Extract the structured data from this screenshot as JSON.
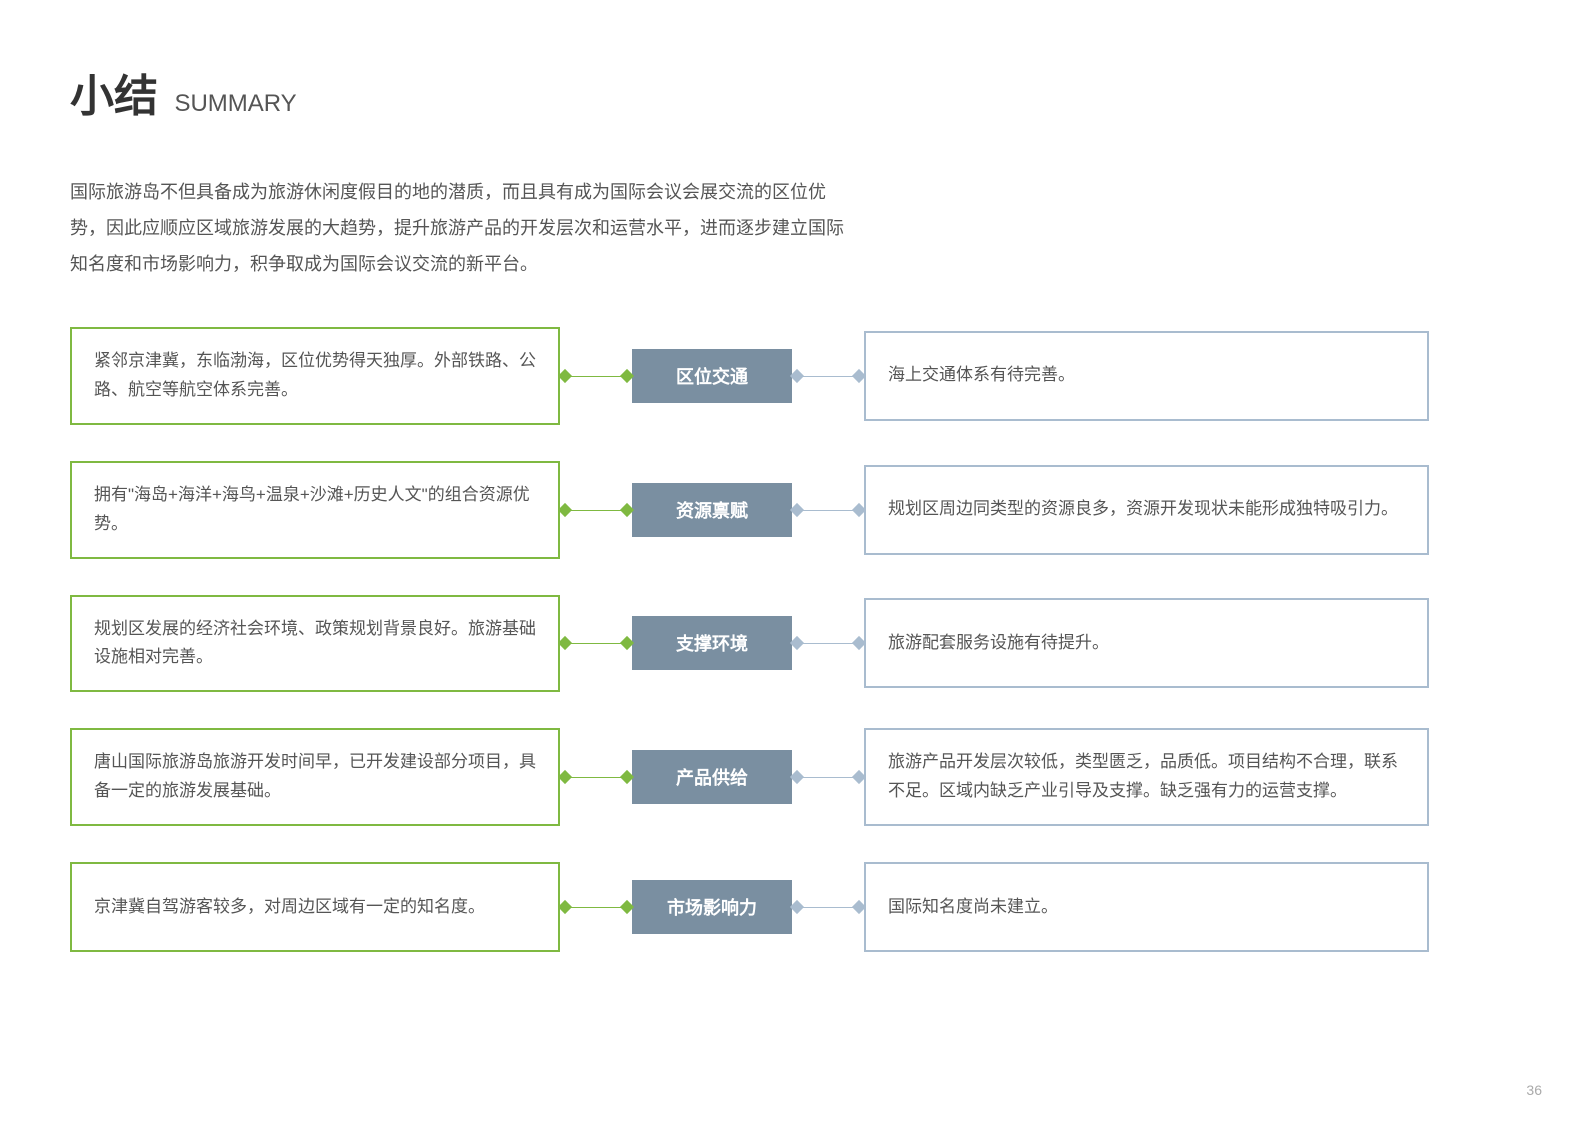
{
  "header": {
    "title_main": "小结",
    "title_sub": "SUMMARY"
  },
  "intro": "国际旅游岛不但具备成为旅游休闲度假目的地的潜质，而且具有成为国际会议会展交流的区位优势，因此应顺应区域旅游发展的大趋势，提升旅游产品的开发层次和运营水平，进而逐步建立国际知名度和市场影响力，积争取成为国际会议交流的新平台。",
  "styling": {
    "type": "comparison-diagram",
    "background_color": "#ffffff",
    "left_border_color": "#7fb941",
    "right_border_color": "#a9bccf",
    "center_bg_color": "#7a8fa1",
    "center_text_color": "#ffffff",
    "connector_left_color": "#7fb941",
    "connector_right_color": "#a9bccf",
    "text_color": "#555555",
    "title_color": "#333333",
    "body_fontsize": 17,
    "title_main_fontsize": 44,
    "title_sub_fontsize": 24,
    "center_label_fontsize": 18,
    "row_gap": 36,
    "left_box_width": 490,
    "right_box_width": 565,
    "center_box_width": 160,
    "center_box_height": 54,
    "connector_width": 72,
    "border_width": 2
  },
  "rows": [
    {
      "left": "紧邻京津冀，东临渤海，区位优势得天独厚。外部铁路、公路、航空等航空体系完善。",
      "center": "区位交通",
      "right": "海上交通体系有待完善。"
    },
    {
      "left": "拥有\"海岛+海洋+海鸟+温泉+沙滩+历史人文\"的组合资源优势。",
      "center": "资源禀赋",
      "right": "规划区周边同类型的资源良多，资源开发现状未能形成独特吸引力。"
    },
    {
      "left": "规划区发展的经济社会环境、政策规划背景良好。旅游基础设施相对完善。",
      "center": "支撑环境",
      "right": "旅游配套服务设施有待提升。"
    },
    {
      "left": "唐山国际旅游岛旅游开发时间早，已开发建设部分项目，具备一定的旅游发展基础。",
      "center": "产品供给",
      "right": "旅游产品开发层次较低，类型匮乏，品质低。项目结构不合理，联系不足。区域内缺乏产业引导及支撑。缺乏强有力的运营支撑。"
    },
    {
      "left": "京津冀自驾游客较多，对周边区域有一定的知名度。",
      "center": "市场影响力",
      "right": "国际知名度尚未建立。"
    }
  ],
  "page_number": "36"
}
